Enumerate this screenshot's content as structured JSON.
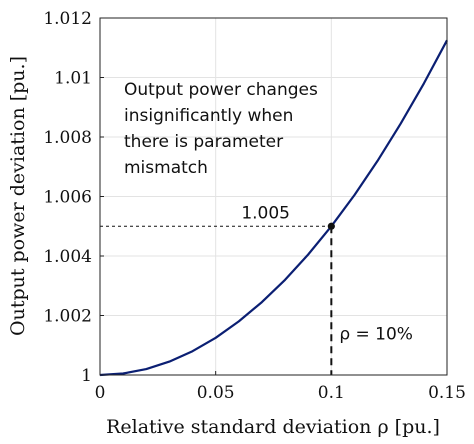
{
  "chart_data": {
    "type": "line",
    "xlabel": "Relative standard deviation ρ [pu.]",
    "ylabel": "Output power deviation [pu.]",
    "xlim": [
      0,
      0.15
    ],
    "ylim": [
      1,
      1.012
    ],
    "xticks": [
      "0",
      "0.05",
      "0.1",
      "0.15"
    ],
    "yticks": [
      "1",
      "1.002",
      "1.004",
      "1.006",
      "1.008",
      "1.01",
      "1.012"
    ],
    "grid": true,
    "series": [
      {
        "color": "#0b1f73",
        "x": [
          0,
          0.01,
          0.02,
          0.03,
          0.04,
          0.05,
          0.06,
          0.07,
          0.08,
          0.09,
          0.1,
          0.11,
          0.12,
          0.13,
          0.14,
          0.15
        ],
        "y": [
          1.0,
          1.00005,
          1.0002,
          1.00045,
          1.0008,
          1.00125,
          1.0018,
          1.00245,
          1.0032,
          1.00405,
          1.005,
          1.00605,
          1.0072,
          1.00845,
          1.0098,
          1.01125
        ]
      }
    ],
    "marker": {
      "x": 0.1,
      "y": 1.005,
      "label_y": "1.005",
      "label_x": "ρ = 10%"
    },
    "annotation": [
      "Output power changes",
      "insignificantly when",
      "there is parameter",
      "mismatch"
    ]
  }
}
